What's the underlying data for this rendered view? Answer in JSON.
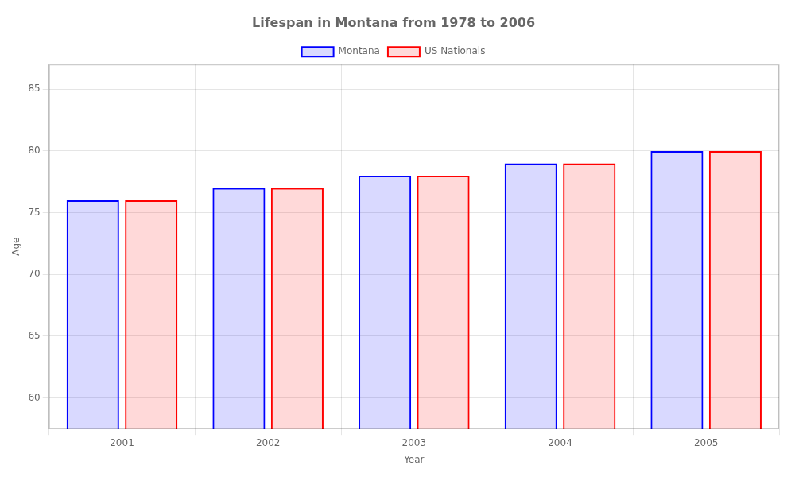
{
  "chart_data": {
    "type": "bar",
    "title": "Lifespan in Montana from 1978 to 2006",
    "xlabel": "Year",
    "ylabel": "Age",
    "categories": [
      "2001",
      "2002",
      "2003",
      "2004",
      "2005"
    ],
    "series": [
      {
        "name": "Montana",
        "color": "#0000ff",
        "values": [
          76,
          77,
          78,
          79,
          80
        ]
      },
      {
        "name": "US Nationals",
        "color": "#ff0000",
        "values": [
          76,
          77,
          78,
          79,
          80
        ]
      }
    ],
    "ylim": [
      57.5,
      87
    ],
    "yticks": [
      60,
      65,
      70,
      75,
      80,
      85
    ],
    "grid": true,
    "legend": "top"
  }
}
